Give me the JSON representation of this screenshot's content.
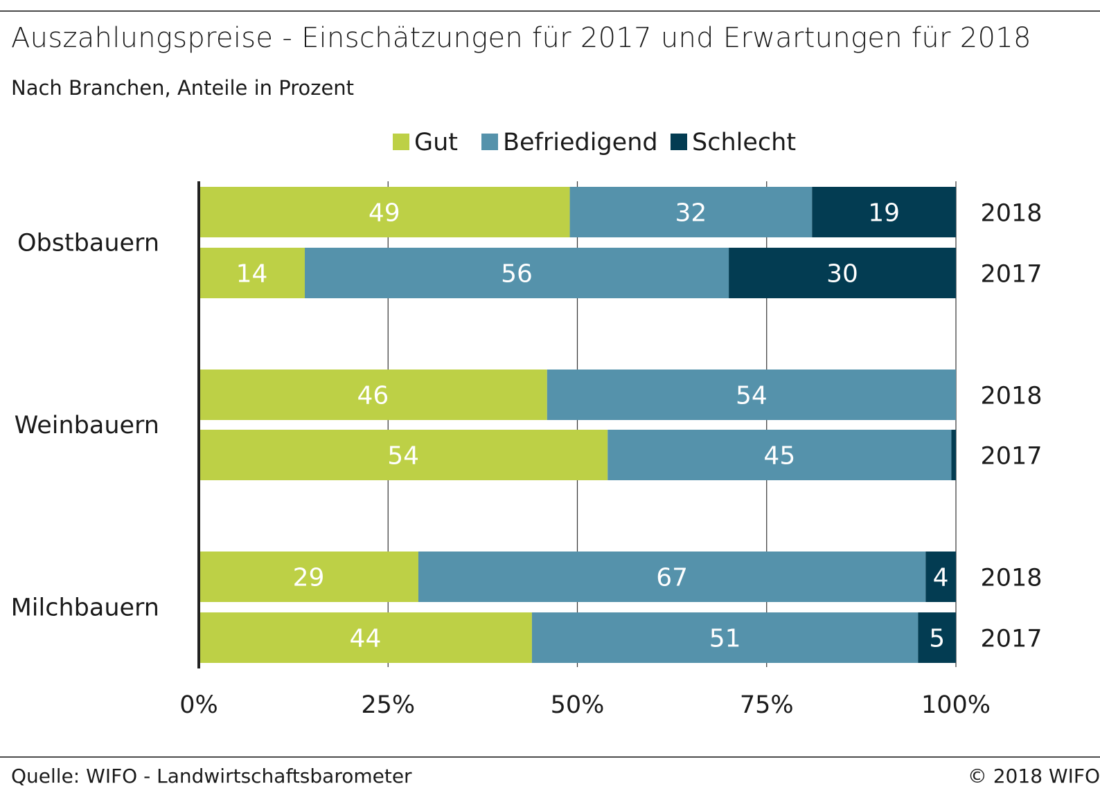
{
  "header": {
    "title": "Auszahlungspreise - Einschätzungen für 2017 und Erwartungen für 2018",
    "subtitle": "Nach Branchen, Anteile in Prozent"
  },
  "footer": {
    "source": "Quelle: WIFO - Landwirtschaftsbarometer",
    "copyright": "© 2018 WIFO"
  },
  "colors": {
    "Gut": "#bdd046",
    "Befriedigend": "#5592ab",
    "Schlecht": "#033c52",
    "grid": "#333333"
  },
  "chart_data": {
    "type": "bar",
    "orientation": "horizontal",
    "stacked": true,
    "legend": {
      "placement": "top",
      "entries": [
        "Gut",
        "Befriedigend",
        "Schlecht"
      ]
    },
    "xlim": [
      0,
      100
    ],
    "xticks": [
      "0%",
      "25%",
      "50%",
      "75%",
      "100%"
    ],
    "grid": true,
    "groups": [
      {
        "name": "Obstbauern",
        "bars": [
          {
            "year": "2018",
            "Gut": 49,
            "Befriedigend": 32,
            "Schlecht": 19,
            "labels": [
              "49",
              "32",
              "19"
            ]
          },
          {
            "year": "2017",
            "Gut": 14,
            "Befriedigend": 56,
            "Schlecht": 30,
            "labels": [
              "14",
              "56",
              "30"
            ]
          }
        ]
      },
      {
        "name": "Weinbauern",
        "bars": [
          {
            "year": "2018",
            "Gut": 46,
            "Befriedigend": 54,
            "Schlecht": 0,
            "labels": [
              "46",
              "54",
              ""
            ]
          },
          {
            "year": "2017",
            "Gut": 54,
            "Befriedigend": 45.4,
            "Schlecht": 0.6,
            "labels": [
              "54",
              "45",
              ""
            ]
          }
        ]
      },
      {
        "name": "Milchbauern",
        "bars": [
          {
            "year": "2018",
            "Gut": 29,
            "Befriedigend": 67,
            "Schlecht": 4,
            "labels": [
              "29",
              "67",
              "4"
            ]
          },
          {
            "year": "2017",
            "Gut": 44,
            "Befriedigend": 51,
            "Schlecht": 5,
            "labels": [
              "44",
              "51",
              "5"
            ]
          }
        ]
      }
    ]
  }
}
